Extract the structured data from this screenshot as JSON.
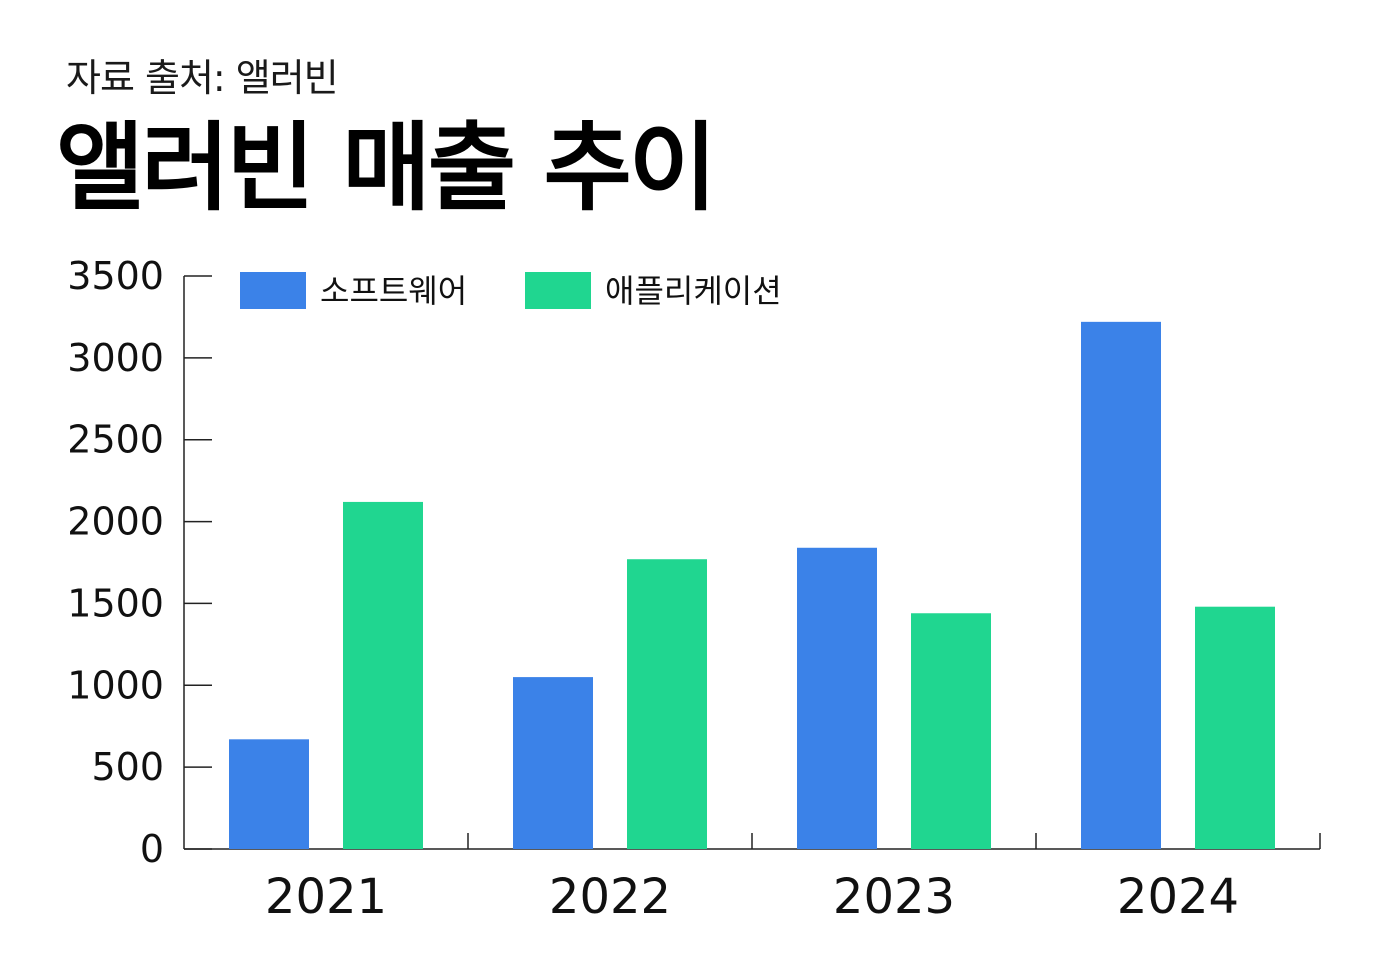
{
  "header": {
    "source": "자료 출처: 앨러빈",
    "title": "앨러빈 매출 추이"
  },
  "chart_data": {
    "type": "bar",
    "categories": [
      "2021",
      "2022",
      "2023",
      "2024"
    ],
    "series": [
      {
        "name": "소프트웨어",
        "color": "#3b82e8",
        "values": [
          670,
          1050,
          1840,
          3220
        ]
      },
      {
        "name": "애플리케이션",
        "color": "#20d690",
        "values": [
          2120,
          1770,
          1440,
          1480
        ]
      }
    ],
    "ylim": [
      0,
      3500
    ],
    "yticks": [
      0,
      500,
      1000,
      1500,
      2000,
      2500,
      3000,
      3500
    ],
    "grid": false,
    "legend_position": "top-left"
  }
}
